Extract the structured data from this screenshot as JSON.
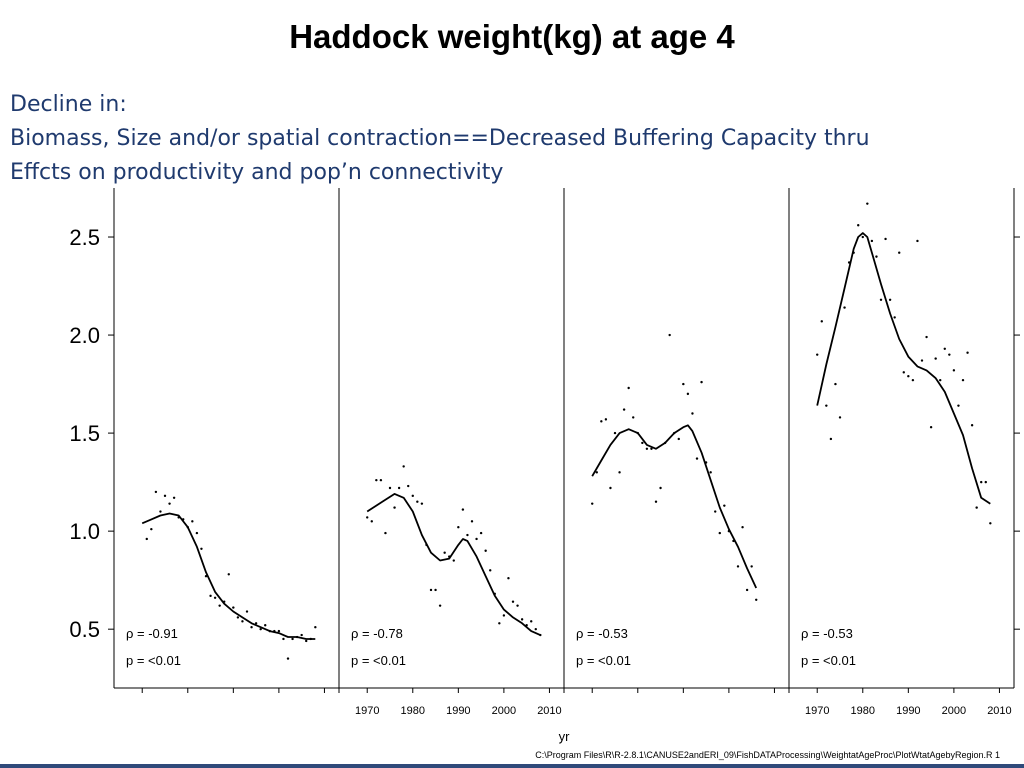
{
  "page": {
    "title": "Haddock weight(kg) at age 4",
    "subtitle_lines": [
      "Decline in:",
      "Biomass, Size and/or spatial contraction==Decreased Buffering Capacity thru",
      "Effcts on productivity and pop’n connectivity"
    ],
    "footer_path": "C:\\Program Files\\R\\R-2.8.1\\CANUSE2andERI_09\\FishDATAProcessing\\WeightatAgeProc\\PlotWtatAgebyRegion.R 1"
  },
  "chart_data": {
    "type": "scatter",
    "title": "Haddock weight(kg) at age 4",
    "xlabel": "yr",
    "ylabel": "",
    "xlim": [
      1966,
      2011
    ],
    "ylim": [
      0.2,
      2.75
    ],
    "yticks": [
      0.5,
      1.0,
      1.5,
      2.0,
      2.5
    ],
    "ytick_labels": [
      "0.5",
      "1.0",
      "1.5",
      "2.0",
      "2.5"
    ],
    "xticks": [
      1970,
      1980,
      1990,
      2000,
      2010
    ],
    "xtick_labels": [
      "1970",
      "1980",
      "1990",
      "2000",
      "2010"
    ],
    "xtick_labels_on_panels": [
      1,
      3
    ],
    "panels": [
      {
        "rho_label": "ρ = -0.91",
        "p_label": "p = <0.01",
        "points": [
          [
            1971,
            0.96
          ],
          [
            1972,
            1.01
          ],
          [
            1973,
            1.2
          ],
          [
            1974,
            1.1
          ],
          [
            1975,
            1.18
          ],
          [
            1976,
            1.14
          ],
          [
            1977,
            1.17
          ],
          [
            1978,
            1.07
          ],
          [
            1979,
            1.06
          ],
          [
            1980,
            1.02
          ],
          [
            1981,
            1.05
          ],
          [
            1982,
            0.99
          ],
          [
            1983,
            0.91
          ],
          [
            1984,
            0.77
          ],
          [
            1985,
            0.67
          ],
          [
            1986,
            0.66
          ],
          [
            1987,
            0.62
          ],
          [
            1988,
            0.64
          ],
          [
            1989,
            0.78
          ],
          [
            1990,
            0.61
          ],
          [
            1991,
            0.56
          ],
          [
            1992,
            0.54
          ],
          [
            1993,
            0.59
          ],
          [
            1994,
            0.51
          ],
          [
            1995,
            0.53
          ],
          [
            1996,
            0.5
          ],
          [
            1997,
            0.52
          ],
          [
            1998,
            0.49
          ],
          [
            1999,
            0.49
          ],
          [
            2000,
            0.49
          ],
          [
            2001,
            0.45
          ],
          [
            2002,
            0.35
          ],
          [
            2003,
            0.45
          ],
          [
            2004,
            0.46
          ],
          [
            2005,
            0.47
          ],
          [
            2006,
            0.44
          ],
          [
            2007,
            0.45
          ],
          [
            2008,
            0.51
          ]
        ],
        "smooth": [
          [
            1970,
            1.04
          ],
          [
            1972,
            1.06
          ],
          [
            1974,
            1.08
          ],
          [
            1976,
            1.09
          ],
          [
            1978,
            1.08
          ],
          [
            1980,
            1.02
          ],
          [
            1982,
            0.92
          ],
          [
            1984,
            0.79
          ],
          [
            1986,
            0.69
          ],
          [
            1988,
            0.63
          ],
          [
            1990,
            0.59
          ],
          [
            1992,
            0.56
          ],
          [
            1994,
            0.53
          ],
          [
            1996,
            0.51
          ],
          [
            1998,
            0.49
          ],
          [
            2000,
            0.48
          ],
          [
            2002,
            0.46
          ],
          [
            2004,
            0.46
          ],
          [
            2006,
            0.45
          ],
          [
            2008,
            0.45
          ]
        ]
      },
      {
        "rho_label": "ρ = -0.78",
        "p_label": "p = <0.01",
        "points": [
          [
            1970,
            1.07
          ],
          [
            1971,
            1.05
          ],
          [
            1972,
            1.26
          ],
          [
            1973,
            1.26
          ],
          [
            1974,
            0.99
          ],
          [
            1975,
            1.22
          ],
          [
            1976,
            1.12
          ],
          [
            1977,
            1.22
          ],
          [
            1978,
            1.33
          ],
          [
            1979,
            1.23
          ],
          [
            1980,
            1.18
          ],
          [
            1981,
            1.15
          ],
          [
            1982,
            1.14
          ],
          [
            1983,
            0.93
          ],
          [
            1984,
            0.7
          ],
          [
            1985,
            0.7
          ],
          [
            1986,
            0.62
          ],
          [
            1987,
            0.89
          ],
          [
            1988,
            0.87
          ],
          [
            1989,
            0.85
          ],
          [
            1990,
            1.02
          ],
          [
            1991,
            1.11
          ],
          [
            1992,
            0.98
          ],
          [
            1993,
            1.05
          ],
          [
            1994,
            0.96
          ],
          [
            1995,
            0.99
          ],
          [
            1996,
            0.9
          ],
          [
            1997,
            0.8
          ],
          [
            1998,
            0.68
          ],
          [
            1999,
            0.53
          ],
          [
            2000,
            0.57
          ],
          [
            2001,
            0.76
          ],
          [
            2002,
            0.64
          ],
          [
            2003,
            0.62
          ],
          [
            2004,
            0.55
          ],
          [
            2005,
            0.52
          ],
          [
            2006,
            0.54
          ],
          [
            2007,
            0.5
          ],
          [
            2008,
            0.47
          ]
        ],
        "smooth": [
          [
            1970,
            1.1
          ],
          [
            1972,
            1.13
          ],
          [
            1974,
            1.16
          ],
          [
            1976,
            1.19
          ],
          [
            1978,
            1.17
          ],
          [
            1980,
            1.1
          ],
          [
            1982,
            0.98
          ],
          [
            1984,
            0.89
          ],
          [
            1986,
            0.85
          ],
          [
            1988,
            0.86
          ],
          [
            1990,
            0.93
          ],
          [
            1991,
            0.96
          ],
          [
            1992,
            0.95
          ],
          [
            1994,
            0.87
          ],
          [
            1996,
            0.77
          ],
          [
            1998,
            0.67
          ],
          [
            2000,
            0.6
          ],
          [
            2002,
            0.56
          ],
          [
            2004,
            0.53
          ],
          [
            2006,
            0.49
          ],
          [
            2008,
            0.47
          ]
        ]
      },
      {
        "rho_label": "ρ = -0.53",
        "p_label": "p = <0.01",
        "points": [
          [
            1970,
            1.14
          ],
          [
            1971,
            1.3
          ],
          [
            1972,
            1.56
          ],
          [
            1973,
            1.57
          ],
          [
            1974,
            1.22
          ],
          [
            1975,
            1.5
          ],
          [
            1976,
            1.3
          ],
          [
            1977,
            1.62
          ],
          [
            1978,
            1.73
          ],
          [
            1979,
            1.58
          ],
          [
            1980,
            1.5
          ],
          [
            1981,
            1.45
          ],
          [
            1982,
            1.42
          ],
          [
            1983,
            1.42
          ],
          [
            1984,
            1.15
          ],
          [
            1985,
            1.22
          ],
          [
            1986,
            1.45
          ],
          [
            1987,
            2.0
          ],
          [
            1988,
            1.5
          ],
          [
            1989,
            1.47
          ],
          [
            1990,
            1.75
          ],
          [
            1991,
            1.7
          ],
          [
            1992,
            1.6
          ],
          [
            1993,
            1.37
          ],
          [
            1994,
            1.76
          ],
          [
            1995,
            1.35
          ],
          [
            1996,
            1.3
          ],
          [
            1997,
            1.1
          ],
          [
            1998,
            0.99
          ],
          [
            1999,
            1.13
          ],
          [
            2000,
            1.0
          ],
          [
            2001,
            0.95
          ],
          [
            2002,
            0.82
          ],
          [
            2003,
            1.02
          ],
          [
            2004,
            0.7
          ],
          [
            2005,
            0.82
          ],
          [
            2006,
            0.65
          ]
        ],
        "smooth": [
          [
            1970,
            1.28
          ],
          [
            1972,
            1.36
          ],
          [
            1974,
            1.44
          ],
          [
            1976,
            1.5
          ],
          [
            1978,
            1.52
          ],
          [
            1980,
            1.5
          ],
          [
            1982,
            1.44
          ],
          [
            1984,
            1.42
          ],
          [
            1986,
            1.45
          ],
          [
            1988,
            1.5
          ],
          [
            1990,
            1.53
          ],
          [
            1991,
            1.54
          ],
          [
            1992,
            1.51
          ],
          [
            1994,
            1.4
          ],
          [
            1996,
            1.26
          ],
          [
            1998,
            1.12
          ],
          [
            2000,
            1.01
          ],
          [
            2002,
            0.92
          ],
          [
            2004,
            0.81
          ],
          [
            2006,
            0.71
          ]
        ]
      },
      {
        "rho_label": "ρ = -0.53",
        "p_label": "p = <0.01",
        "points": [
          [
            1970,
            1.9
          ],
          [
            1971,
            2.07
          ],
          [
            1972,
            1.64
          ],
          [
            1973,
            1.47
          ],
          [
            1974,
            1.75
          ],
          [
            1975,
            1.58
          ],
          [
            1976,
            2.14
          ],
          [
            1977,
            2.37
          ],
          [
            1978,
            2.42
          ],
          [
            1979,
            2.56
          ],
          [
            1980,
            2.5
          ],
          [
            1981,
            2.67
          ],
          [
            1982,
            2.48
          ],
          [
            1983,
            2.4
          ],
          [
            1984,
            2.18
          ],
          [
            1985,
            2.49
          ],
          [
            1986,
            2.18
          ],
          [
            1987,
            2.09
          ],
          [
            1988,
            2.42
          ],
          [
            1989,
            1.81
          ],
          [
            1990,
            1.79
          ],
          [
            1991,
            1.77
          ],
          [
            1992,
            2.48
          ],
          [
            1993,
            1.87
          ],
          [
            1994,
            1.99
          ],
          [
            1995,
            1.53
          ],
          [
            1996,
            1.88
          ],
          [
            1997,
            1.77
          ],
          [
            1998,
            1.93
          ],
          [
            1999,
            1.9
          ],
          [
            2000,
            1.82
          ],
          [
            2001,
            1.64
          ],
          [
            2002,
            1.77
          ],
          [
            2003,
            1.91
          ],
          [
            2004,
            1.54
          ],
          [
            2005,
            1.12
          ],
          [
            2006,
            1.25
          ],
          [
            2007,
            1.25
          ],
          [
            2008,
            1.04
          ]
        ],
        "smooth": [
          [
            1970,
            1.64
          ],
          [
            1972,
            1.85
          ],
          [
            1974,
            2.04
          ],
          [
            1976,
            2.24
          ],
          [
            1978,
            2.44
          ],
          [
            1979,
            2.5
          ],
          [
            1980,
            2.52
          ],
          [
            1981,
            2.5
          ],
          [
            1982,
            2.42
          ],
          [
            1984,
            2.26
          ],
          [
            1986,
            2.11
          ],
          [
            1988,
            1.98
          ],
          [
            1990,
            1.89
          ],
          [
            1992,
            1.84
          ],
          [
            1994,
            1.82
          ],
          [
            1996,
            1.78
          ],
          [
            1998,
            1.71
          ],
          [
            2000,
            1.6
          ],
          [
            2002,
            1.49
          ],
          [
            2004,
            1.32
          ],
          [
            2006,
            1.17
          ],
          [
            2008,
            1.14
          ]
        ]
      }
    ]
  }
}
